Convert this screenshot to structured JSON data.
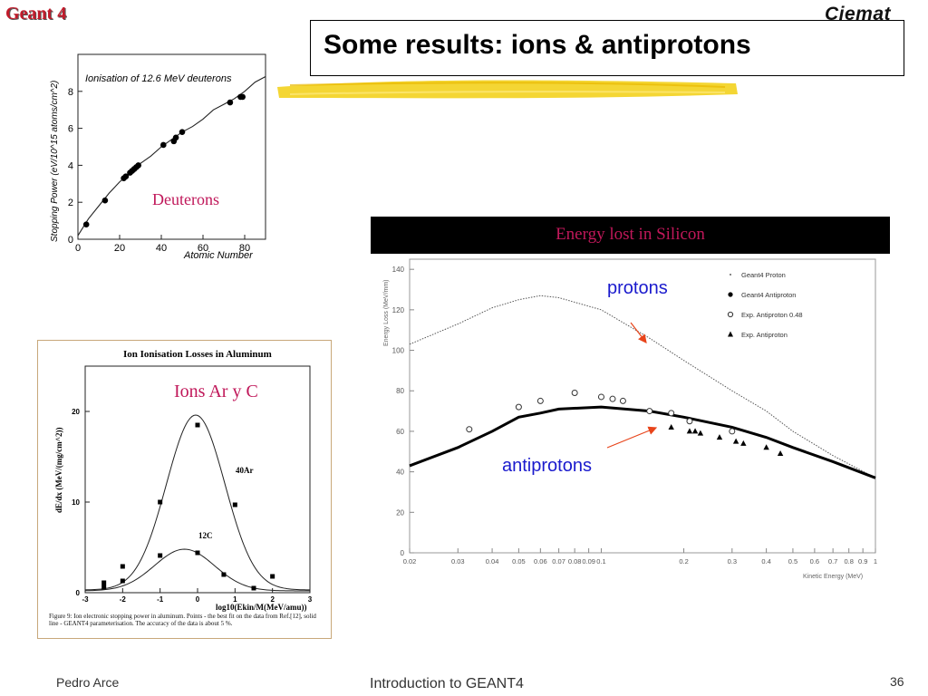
{
  "header": {
    "brand": "Geant 4",
    "logo_text": "Ciemat",
    "title": "Some results: ions & antiprotons"
  },
  "deuteron_chart": {
    "title": "Ionisation of 12.6 MeV deuterons",
    "xlabel": "Atomic Number",
    "ylabel": "Stopping Power (eV/10^15 atoms/cm^2)",
    "annotation": "Deuterons",
    "x_ticks": [
      "0",
      "20",
      "40",
      "60",
      "80"
    ],
    "y_ticks": [
      "0",
      "2",
      "4",
      "6",
      "8"
    ]
  },
  "ion_chart": {
    "title": "Ion Ionisation Losses in Aluminum",
    "xlabel": "log10(Ekin/M(MeV/amu))",
    "ylabel": "dE/dx (MeV/(mg/cm^2))",
    "annotation": "Ions Ar y C",
    "label_ar": "40Ar",
    "label_c": "12C",
    "x_ticks": [
      "-3",
      "-2",
      "-1",
      "0",
      "1",
      "2",
      "3"
    ],
    "y_ticks": [
      "0",
      "10",
      "20"
    ],
    "caption": "Figure 9: Ion electronic stopping power in aluminum. Points - the best fit on the data from Ref.[12], solid line - GEANT4 parameterisation. The accuracy of the data is about 5 %."
  },
  "silicon_chart": {
    "banner": "Energy lost in Silicon",
    "ylabel": "Energy Loss (MeV/mm)",
    "xlabel": "Kinetic Energy (MeV)",
    "y_ticks": [
      "0",
      "20",
      "40",
      "60",
      "80",
      "100",
      "120",
      "140"
    ],
    "x_ticks": [
      "0.02",
      "0.03",
      "0.04",
      "0.05",
      "0.06",
      "0.07",
      "0.08",
      "0.09",
      "0.1",
      "0.2",
      "0.3",
      "0.4",
      "0.5",
      "0.6",
      "0.7",
      "0.8",
      "0.9",
      "1"
    ],
    "legend": [
      "Geant4 Proton",
      "Geant4 Antiproton",
      "Exp. Antiproton 0.48",
      "Exp. Antiproton"
    ],
    "annotation_protons": "protons",
    "annotation_antiprotons": "antiprotons",
    "colors": {
      "banner_bg": "#000000",
      "banner_text": "#c0185a",
      "annotation": "#1a1acd",
      "arrow": "#e8441a"
    }
  },
  "chart_data": [
    {
      "type": "scatter",
      "title": "Ionisation of 12.6 MeV deuterons",
      "xlabel": "Atomic Number",
      "ylabel": "Stopping Power (eV/10^15 atoms/cm^2)",
      "xlim": [
        0,
        90
      ],
      "ylim": [
        0,
        10
      ],
      "series": [
        {
          "name": "",
          "x": [
            4,
            13,
            22,
            23,
            25,
            26,
            27,
            28,
            29,
            41,
            46,
            47,
            50,
            73,
            78,
            79
          ],
          "y": [
            0.8,
            2.1,
            3.3,
            3.4,
            3.6,
            3.7,
            3.8,
            3.9,
            4.0,
            5.1,
            5.3,
            5.5,
            5.8,
            7.4,
            7.7,
            7.7
          ]
        }
      ],
      "curve": {
        "x": [
          0,
          5,
          10,
          15,
          20,
          25,
          30,
          35,
          40,
          45,
          50,
          55,
          60,
          65,
          70,
          75,
          80,
          85,
          90
        ],
        "y": [
          0.2,
          1.1,
          1.8,
          2.5,
          3.1,
          3.6,
          4.1,
          4.5,
          5.0,
          5.4,
          5.8,
          6.1,
          6.5,
          7.0,
          7.3,
          7.6,
          8.0,
          8.5,
          8.8
        ]
      }
    },
    {
      "type": "scatter",
      "title": "Ion Ionisation Losses in Aluminum",
      "xlabel": "log10(Ekin/M(MeV/amu))",
      "ylabel": "dE/dx (MeV/(mg/cm^2))",
      "xlim": [
        -3,
        3
      ],
      "ylim": [
        0,
        25
      ],
      "series": [
        {
          "name": "40Ar",
          "x": [
            -2.5,
            -2.0,
            -1.0,
            0.0,
            1.0,
            2.0
          ],
          "y": [
            1.1,
            2.9,
            10.0,
            18.5,
            9.7,
            1.8
          ]
        },
        {
          "name": "12C",
          "x": [
            -2.5,
            -2.0,
            -1.0,
            0.0,
            0.7,
            1.5
          ],
          "y": [
            0.6,
            1.3,
            4.1,
            4.4,
            2.0,
            0.5
          ]
        }
      ]
    },
    {
      "type": "line",
      "title": "",
      "xlabel": "Kinetic Energy (MeV)",
      "ylabel": "Energy Loss (MeV/mm)",
      "xscale": "log",
      "xlim": [
        0.02,
        1
      ],
      "ylim": [
        0,
        145
      ],
      "series": [
        {
          "name": "Geant4 Proton",
          "x": [
            0.02,
            0.03,
            0.04,
            0.05,
            0.06,
            0.07,
            0.1,
            0.15,
            0.2,
            0.3,
            0.4,
            0.5,
            0.7,
            1.0
          ],
          "y": [
            103,
            113,
            121,
            125,
            127,
            126,
            120,
            106,
            95,
            80,
            70,
            60,
            48,
            37
          ]
        },
        {
          "name": "Geant4 Antiproton",
          "x": [
            0.02,
            0.03,
            0.04,
            0.05,
            0.06,
            0.07,
            0.1,
            0.15,
            0.2,
            0.3,
            0.4,
            0.5,
            0.7,
            1.0
          ],
          "y": [
            43,
            52,
            60,
            67,
            69,
            71,
            72,
            70,
            67,
            62,
            57,
            52,
            45,
            37
          ]
        },
        {
          "name": "Exp. Antiproton 0.48",
          "x": [
            0.033,
            0.05,
            0.06,
            0.08,
            0.1,
            0.11,
            0.12,
            0.15,
            0.18,
            0.21,
            0.3
          ],
          "y": [
            61,
            72,
            75,
            79,
            77,
            76,
            75,
            70,
            69,
            65,
            60
          ]
        },
        {
          "name": "Exp. Antiproton",
          "x": [
            0.18,
            0.21,
            0.22,
            0.23,
            0.27,
            0.31,
            0.33,
            0.4,
            0.45
          ],
          "y": [
            62,
            60,
            60,
            59,
            57,
            55,
            54,
            52,
            49
          ]
        }
      ]
    }
  ],
  "footer": {
    "author": "Pedro Arce",
    "course": "Introduction to GEANT4",
    "page": "36"
  }
}
